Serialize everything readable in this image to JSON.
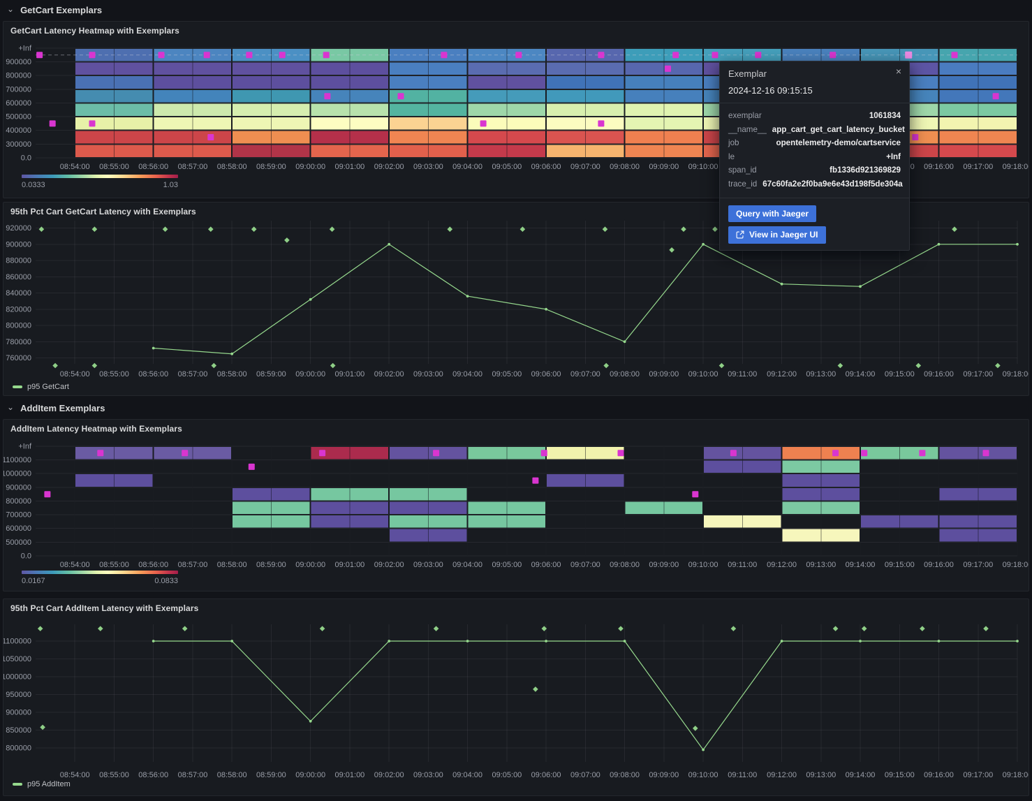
{
  "rows": [
    {
      "label": "GetCart Exemplars"
    },
    {
      "label": "AddItem Exemplars"
    }
  ],
  "icons": {
    "chevron": "⌄",
    "close": "×",
    "external_link": "open-in-new-window"
  },
  "colors": {
    "exemplar": "#d935d0",
    "exemplar_highlight": "#ec8ae3",
    "line_green": "#96d98d",
    "button_blue": "#3d71d9",
    "panel_bg": "#181b20",
    "page_bg": "#121419"
  },
  "tooltip": {
    "title": "Exemplar",
    "timestamp": "2024-12-16 09:15:15",
    "fields": [
      {
        "label": "exemplar",
        "value": "1061834"
      },
      {
        "label": "__name__",
        "value": "app_cart_get_cart_latency_bucket"
      },
      {
        "label": "job",
        "value": "opentelemetry-demo/cartservice"
      },
      {
        "label": "le",
        "value": "+Inf"
      },
      {
        "label": "span_id",
        "value": "fb1336d921369829"
      },
      {
        "label": "trace_id",
        "value": "67c60fa2e2f0ba9e6e43d198f5de304a"
      }
    ],
    "buttons": [
      {
        "label": "Query with Jaeger"
      },
      {
        "label": "View in Jaeger UI",
        "icon": "external-link"
      }
    ]
  },
  "chart_data": [
    {
      "type": "heatmap",
      "panel": "p1",
      "title": "GetCart Latency Heatmap with Exemplars",
      "x_start": "08:53:00",
      "x_ticks": [
        "08:54:00",
        "08:55:00",
        "08:56:00",
        "08:57:00",
        "08:58:00",
        "08:59:00",
        "09:00:00",
        "09:01:00",
        "09:02:00",
        "09:03:00",
        "09:04:00",
        "09:05:00",
        "09:06:00",
        "09:07:00",
        "09:08:00",
        "09:09:00",
        "09:10:00",
        "09:11:00",
        "09:12:00",
        "09:13:00",
        "09:14:00",
        "09:15:00",
        "09:16:00",
        "09:17:00",
        "09:18:00"
      ],
      "y_ticks": [
        "+Inf",
        "900000",
        "800000",
        "700000",
        "600000",
        "500000",
        "400000",
        "300000",
        "0.0"
      ],
      "bucket_minutes": 2,
      "first_bucket_minute": 1,
      "columns": [
        [
          "#4e6fb0",
          "#60519f",
          "#4a71b4",
          "#458cb0",
          "#6cbda8",
          "#e7f1a8",
          "#cc4549",
          "#dd5a4c"
        ],
        [
          "#4c85c0",
          "#60519f",
          "#5d4f9e",
          "#4384bb",
          "#cde9ad",
          "#eef6b4",
          "#cc4549",
          "#dd5a4c"
        ],
        [
          "#4b90c4",
          "#60519f",
          "#5d4f9e",
          "#3f97b1",
          "#d6eeaf",
          "#eef6b4",
          "#ef8e51",
          "#b13448"
        ],
        [
          "#79c8a4",
          "#5d4f9e",
          "#5d4f9e",
          "#4684bb",
          "#b8e2ac",
          "#fdfdc1",
          "#b5304a",
          "#e4654d"
        ],
        [
          "#4a7fc0",
          "#4a7fc0",
          "#4a7fc0",
          "#52b2a2",
          "#54b4a0",
          "#fbd392",
          "#f08552",
          "#e2604c"
        ],
        [
          "#4c87c2",
          "#5a6cb0",
          "#60519f",
          "#459bba",
          "#9ed7a9",
          "#fbfcba",
          "#d5494d",
          "#c43a4b"
        ],
        [
          "#5767ae",
          "#5a6cb0",
          "#4073b8",
          "#4199bb",
          "#d8efae",
          "#fbfcc0",
          "#da5450",
          "#f6b46e"
        ],
        [
          "#3d9db9",
          "#5767ae",
          "#4680bc",
          "#4680bc",
          "#e0f3b0",
          "#e4f4b2",
          "#f08050",
          "#ef8552"
        ],
        [
          "#45a0bc",
          "#60519f",
          "#4a7fc0",
          "#4684bb",
          "#9ed7a9",
          "#eef6b4",
          "#cc4549",
          "#e4654d"
        ],
        [
          "#4a82be",
          "#60519f",
          "#4a7fc0",
          "#459bba",
          "#b8e2ac",
          "#fbfcba",
          "#ef8e51",
          "#d5494d"
        ],
        [
          "#4796b8",
          "#5d55a5",
          "#4a7fc0",
          "#4684bb",
          "#9ed7a9",
          "#eef6b4",
          "#ef8e51",
          "#cc4549"
        ],
        [
          "#46a5ae",
          "#4a7cc0",
          "#4073b8",
          "#4377ba",
          "#7cc9a2",
          "#f2f4b0",
          "#ef8551",
          "#d5494d"
        ]
      ],
      "exemplars": [
        [
          0.1,
          0
        ],
        [
          1.44,
          0
        ],
        [
          3.2,
          0
        ],
        [
          4.36,
          0
        ],
        [
          5.44,
          0
        ],
        [
          6.28,
          0
        ],
        [
          7.4,
          0
        ],
        [
          10.4,
          0
        ],
        [
          12.3,
          0
        ],
        [
          14.4,
          0
        ],
        [
          16.3,
          0
        ],
        [
          17.3,
          0
        ],
        [
          18.4,
          0
        ],
        [
          20.3,
          0
        ],
        [
          23.4,
          0
        ],
        [
          0.43,
          5
        ],
        [
          1.44,
          5
        ],
        [
          4.46,
          6
        ],
        [
          7.43,
          3
        ],
        [
          9.3,
          3
        ],
        [
          11.4,
          5
        ],
        [
          14.4,
          5
        ],
        [
          16.1,
          1
        ],
        [
          22.4,
          6
        ],
        [
          24.45,
          3
        ]
      ],
      "highlighted_exemplar": {
        "t": 22.23,
        "row": 0,
        "time": "09:15:15"
      },
      "color_scale": {
        "min": "0.0333",
        "max": "1.03"
      }
    },
    {
      "type": "line",
      "panel": "p2",
      "title": "95th Pct Cart GetCart Latency with Exemplars",
      "x_ticks": [
        "08:54:00",
        "08:55:00",
        "08:56:00",
        "08:57:00",
        "08:58:00",
        "08:59:00",
        "09:00:00",
        "09:01:00",
        "09:02:00",
        "09:03:00",
        "09:04:00",
        "09:05:00",
        "09:06:00",
        "09:07:00",
        "09:08:00",
        "09:09:00",
        "09:10:00",
        "09:11:00",
        "09:12:00",
        "09:13:00",
        "09:14:00",
        "09:15:00",
        "09:16:00",
        "09:17:00",
        "09:18:00"
      ],
      "y_ticks": [
        920000,
        900000,
        880000,
        860000,
        840000,
        820000,
        800000,
        780000,
        760000
      ],
      "series": [
        {
          "name": "p95 GetCart",
          "color": "#96d98d",
          "x_minutes": [
            3,
            5,
            7,
            9,
            11,
            13,
            15,
            17,
            19,
            21,
            23,
            25
          ],
          "values": [
            772000,
            765000,
            832000,
            900000,
            836000,
            820000,
            780000,
            900000,
            851000,
            848000,
            900000,
            900000
          ]
        }
      ],
      "exemplars": [
        [
          0.15,
          918500
        ],
        [
          1.5,
          918500
        ],
        [
          3.3,
          918500
        ],
        [
          4.46,
          918500
        ],
        [
          5.56,
          918500
        ],
        [
          7.55,
          918500
        ],
        [
          10.55,
          918500
        ],
        [
          12.4,
          918500
        ],
        [
          14.5,
          918500
        ],
        [
          16.5,
          918500
        ],
        [
          17.3,
          918500
        ],
        [
          23.4,
          918500
        ],
        [
          6.4,
          905000
        ],
        [
          16.2,
          893000
        ],
        [
          0.5,
          750500
        ],
        [
          1.5,
          750500
        ],
        [
          4.54,
          750500
        ],
        [
          7.57,
          750500
        ],
        [
          14.53,
          750500
        ],
        [
          17.47,
          750500
        ],
        [
          20.49,
          750500
        ],
        [
          22.48,
          750500
        ],
        [
          24.5,
          750500
        ]
      ]
    },
    {
      "type": "heatmap",
      "panel": "p3",
      "title": "AddItem Latency Heatmap with Exemplars",
      "x_start": "08:53:00",
      "x_ticks": [
        "08:54:00",
        "08:55:00",
        "08:56:00",
        "08:57:00",
        "08:58:00",
        "08:59:00",
        "09:00:00",
        "09:01:00",
        "09:02:00",
        "09:03:00",
        "09:04:00",
        "09:05:00",
        "09:06:00",
        "09:07:00",
        "09:08:00",
        "09:09:00",
        "09:10:00",
        "09:11:00",
        "09:12:00",
        "09:13:00",
        "09:14:00",
        "09:15:00",
        "09:16:00",
        "09:17:00",
        "09:18:00"
      ],
      "y_ticks": [
        "+Inf",
        "1100000",
        "1000000",
        "900000",
        "800000",
        "700000",
        "600000",
        "500000",
        "0.0"
      ],
      "bucket_minutes": 2,
      "first_bucket_minute": 1,
      "columns": [
        [
          "#6a5ba3",
          null,
          "#5d4f9e",
          null,
          null,
          null,
          null,
          null
        ],
        [
          "#6a5ba3",
          null,
          null,
          null,
          null,
          null,
          null,
          null
        ],
        [
          null,
          null,
          null,
          "#5d4f9e",
          "#76c7a0",
          "#76c7a0",
          null,
          null
        ],
        [
          "#ab2b4d",
          null,
          null,
          "#76c7a0",
          "#5d4f9e",
          "#5d4f9e",
          null,
          null
        ],
        [
          "#64539f",
          null,
          null,
          "#76c7a0",
          "#5d4f9e",
          "#76c7a0",
          "#5d4f9e",
          null
        ],
        [
          "#79c89c",
          null,
          null,
          null,
          "#76c7a0",
          "#76c7a0",
          null,
          null
        ],
        [
          "#f1f3ad",
          null,
          "#5d4f9e",
          null,
          null,
          null,
          null,
          null
        ],
        [
          null,
          null,
          null,
          null,
          "#76c7a0",
          null,
          null,
          null
        ],
        [
          "#64539f",
          "#5d4f9e",
          null,
          null,
          null,
          "#f6f6bc",
          null,
          null
        ],
        [
          "#ee8150",
          "#7cc9a2",
          "#5d4f9e",
          "#5d4f9e",
          "#7cc9a2",
          null,
          "#f6f6bc",
          null
        ],
        [
          "#79c89c",
          null,
          null,
          null,
          null,
          "#5d4f9e",
          null,
          null
        ],
        [
          "#64539f",
          null,
          null,
          "#5d4f9e",
          null,
          "#5d4f9e",
          "#5d4f9e",
          null
        ]
      ],
      "exemplars": [
        [
          1.65,
          0
        ],
        [
          3.8,
          0
        ],
        [
          7.3,
          0
        ],
        [
          10.2,
          0
        ],
        [
          12.95,
          0
        ],
        [
          14.9,
          0
        ],
        [
          17.77,
          0
        ],
        [
          20.37,
          0
        ],
        [
          21.1,
          0
        ],
        [
          22.58,
          0
        ],
        [
          24.2,
          0
        ],
        [
          5.5,
          1
        ],
        [
          12.73,
          2
        ],
        [
          0.3,
          3
        ],
        [
          16.8,
          3
        ]
      ],
      "highlighted_exemplar": null,
      "color_scale": {
        "min": "0.0167",
        "max": "0.0833"
      }
    },
    {
      "type": "line",
      "panel": "p4",
      "title": "95th Pct Cart AddItem Latency with Exemplars",
      "x_ticks": [
        "08:54:00",
        "08:55:00",
        "08:56:00",
        "08:57:00",
        "08:58:00",
        "08:59:00",
        "09:00:00",
        "09:01:00",
        "09:02:00",
        "09:03:00",
        "09:04:00",
        "09:05:00",
        "09:06:00",
        "09:07:00",
        "09:08:00",
        "09:09:00",
        "09:10:00",
        "09:11:00",
        "09:12:00",
        "09:13:00",
        "09:14:00",
        "09:15:00",
        "09:16:00",
        "09:17:00",
        "09:18:00"
      ],
      "y_ticks": [
        1100000,
        1050000,
        1000000,
        950000,
        900000,
        850000,
        800000
      ],
      "series": [
        {
          "name": "p95 AddItem",
          "color": "#96d98d",
          "x_minutes": [
            3,
            5,
            7,
            9,
            11,
            13,
            15,
            17,
            19,
            21,
            23,
            25
          ],
          "values": [
            1100000,
            1100000,
            875000,
            1100000,
            1100000,
            1100000,
            1100000,
            795000,
            1100000,
            1100000,
            1100000,
            1100000
          ]
        }
      ],
      "exemplars": [
        [
          0.12,
          1135000
        ],
        [
          1.65,
          1135000
        ],
        [
          3.8,
          1135000
        ],
        [
          7.3,
          1135000
        ],
        [
          10.2,
          1135000
        ],
        [
          12.95,
          1135000
        ],
        [
          14.9,
          1135000
        ],
        [
          17.77,
          1135000
        ],
        [
          20.37,
          1135000
        ],
        [
          21.1,
          1135000
        ],
        [
          22.58,
          1135000
        ],
        [
          24.2,
          1135000
        ],
        [
          0.18,
          858000
        ],
        [
          12.73,
          965000
        ],
        [
          16.8,
          855000
        ]
      ]
    }
  ]
}
